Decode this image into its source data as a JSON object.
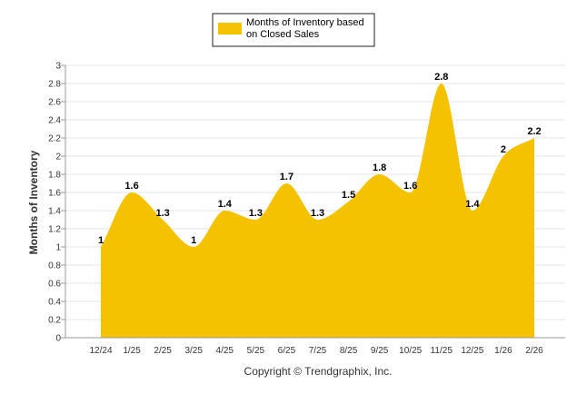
{
  "chart_data": {
    "type": "area",
    "title": "",
    "xlabel": "",
    "ylabel": "Months of Inventory",
    "ylim": [
      0,
      3
    ],
    "yticks": [
      "0",
      "0.2",
      "0.4",
      "0.6",
      "0.8",
      "1",
      "1.2",
      "1.4",
      "1.6",
      "1.8",
      "2",
      "2.2",
      "2.4",
      "2.6",
      "2.8",
      "3"
    ],
    "categories": [
      "12/24",
      "1/25",
      "2/25",
      "3/25",
      "4/25",
      "5/25",
      "6/25",
      "7/25",
      "8/25",
      "9/25",
      "10/25",
      "11/25",
      "12/25",
      "1/26",
      "2/26"
    ],
    "series": [
      {
        "name": "Months of Inventory based on Closed Sales",
        "legend_lines": [
          "Months of Inventory based",
          "on Closed Sales"
        ],
        "values": [
          1,
          1.6,
          1.3,
          1,
          1.4,
          1.3,
          1.7,
          1.3,
          1.5,
          1.8,
          1.6,
          2.8,
          1.4,
          2,
          2.2
        ],
        "labels": [
          "1",
          "1.6",
          "1.3",
          "1",
          "1.4",
          "1.3",
          "1.7",
          "1.3",
          "1.5",
          "1.8",
          "1.6",
          "2.8",
          "1.4",
          "2",
          "2.2"
        ],
        "color": "#F5C200"
      }
    ],
    "grid": true,
    "legend_position": "top-center"
  },
  "footer": {
    "copyright": "Copyright © Trendgraphix, Inc."
  }
}
